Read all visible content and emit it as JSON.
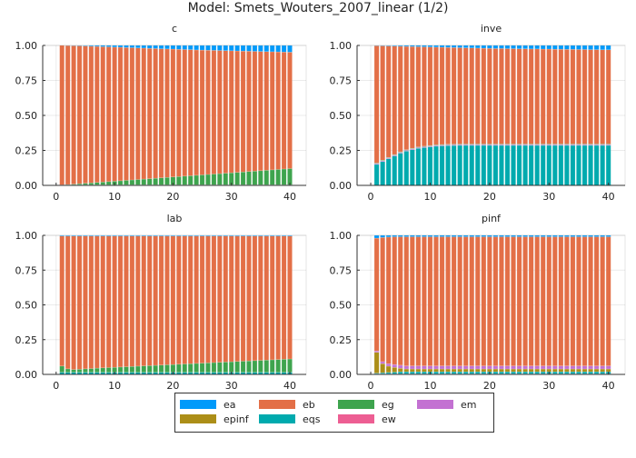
{
  "chart_data": {
    "title": "Model: Smets_Wouters_2007_linear  (1/2)",
    "type": "bar",
    "stacked": true,
    "x": [
      1,
      2,
      3,
      4,
      5,
      6,
      7,
      8,
      9,
      10,
      11,
      12,
      13,
      14,
      15,
      16,
      17,
      18,
      19,
      20,
      21,
      22,
      23,
      24,
      25,
      26,
      27,
      28,
      29,
      30,
      31,
      32,
      33,
      34,
      35,
      36,
      37,
      38,
      39,
      40
    ],
    "xlim": [
      -2.3,
      42.8
    ],
    "ylim": [
      0,
      1
    ],
    "xticks": [
      "0",
      "10",
      "20",
      "30",
      "40"
    ],
    "xtick_values": [
      0,
      10,
      20,
      30,
      40
    ],
    "yticks": [
      "0.00",
      "0.25",
      "0.50",
      "0.75",
      "1.00"
    ],
    "ytick_values": [
      0,
      0.25,
      0.5,
      0.75,
      1
    ],
    "grid": true,
    "legend": {
      "placement": "bottom",
      "entries": [
        "ea",
        "eb",
        "eg",
        "em",
        "epinf",
        "eqs",
        "ew"
      ]
    },
    "colors": {
      "ea": "#009AFA",
      "eb": "#E36F47",
      "eg": "#3EA44E",
      "em": "#C371D2",
      "epinf": "#AC8E18",
      "eqs": "#00AAAE",
      "ew": "#ED5E93"
    },
    "panels": [
      {
        "title": "c",
        "series": {
          "ea": [
            0.0,
            0.001,
            0.002,
            0.003,
            0.004,
            0.006,
            0.007,
            0.009,
            0.01,
            0.012,
            0.013,
            0.015,
            0.016,
            0.018,
            0.019,
            0.021,
            0.022,
            0.024,
            0.025,
            0.026,
            0.028,
            0.029,
            0.03,
            0.032,
            0.033,
            0.034,
            0.035,
            0.036,
            0.037,
            0.038,
            0.039,
            0.04,
            0.041,
            0.042,
            0.043,
            0.044,
            0.045,
            0.046,
            0.047,
            0.048
          ],
          "eb": [
            0.996,
            0.993,
            0.989,
            0.985,
            0.981,
            0.976,
            0.972,
            0.967,
            0.963,
            0.958,
            0.954,
            0.949,
            0.945,
            0.94,
            0.936,
            0.931,
            0.927,
            0.922,
            0.918,
            0.914,
            0.909,
            0.905,
            0.901,
            0.896,
            0.892,
            0.888,
            0.884,
            0.88,
            0.876,
            0.872,
            0.868,
            0.864,
            0.86,
            0.856,
            0.852,
            0.848,
            0.844,
            0.84,
            0.836,
            0.832
          ],
          "eg": [
            0.0,
            0.002,
            0.005,
            0.008,
            0.011,
            0.014,
            0.017,
            0.02,
            0.023,
            0.026,
            0.029,
            0.032,
            0.035,
            0.038,
            0.041,
            0.044,
            0.047,
            0.05,
            0.053,
            0.056,
            0.059,
            0.062,
            0.065,
            0.068,
            0.071,
            0.074,
            0.077,
            0.08,
            0.083,
            0.086,
            0.089,
            0.092,
            0.095,
            0.098,
            0.101,
            0.104,
            0.107,
            0.11,
            0.113,
            0.116
          ],
          "em": [
            0.004,
            0.004,
            0.004,
            0.004,
            0.004,
            0.004,
            0.004,
            0.004,
            0.004,
            0.004,
            0.004,
            0.004,
            0.004,
            0.004,
            0.004,
            0.004,
            0.004,
            0.004,
            0.004,
            0.004,
            0.004,
            0.004,
            0.004,
            0.004,
            0.004,
            0.004,
            0.004,
            0.004,
            0.004,
            0.004,
            0.004,
            0.004,
            0.004,
            0.004,
            0.004,
            0.004,
            0.004,
            0.004,
            0.004,
            0.004
          ]
        }
      },
      {
        "title": "inve",
        "series": {
          "ea": [
            0.002,
            0.003,
            0.004,
            0.005,
            0.006,
            0.007,
            0.008,
            0.009,
            0.01,
            0.011,
            0.012,
            0.013,
            0.014,
            0.015,
            0.016,
            0.017,
            0.018,
            0.019,
            0.02,
            0.021,
            0.022,
            0.022,
            0.023,
            0.023,
            0.024,
            0.024,
            0.025,
            0.025,
            0.026,
            0.026,
            0.027,
            0.027,
            0.028,
            0.028,
            0.029,
            0.029,
            0.03,
            0.03,
            0.031,
            0.031
          ],
          "eb": [
            0.838,
            0.817,
            0.796,
            0.775,
            0.754,
            0.738,
            0.727,
            0.716,
            0.71,
            0.704,
            0.698,
            0.695,
            0.692,
            0.69,
            0.688,
            0.687,
            0.686,
            0.685,
            0.684,
            0.683,
            0.682,
            0.682,
            0.681,
            0.681,
            0.68,
            0.68,
            0.679,
            0.679,
            0.678,
            0.678,
            0.677,
            0.677,
            0.676,
            0.676,
            0.675,
            0.675,
            0.674,
            0.674,
            0.673,
            0.673
          ],
          "eg": [
            0.004,
            0.004,
            0.004,
            0.004,
            0.004,
            0.004,
            0.004,
            0.004,
            0.004,
            0.004,
            0.004,
            0.004,
            0.004,
            0.004,
            0.004,
            0.004,
            0.004,
            0.004,
            0.004,
            0.004,
            0.004,
            0.004,
            0.004,
            0.004,
            0.004,
            0.004,
            0.004,
            0.004,
            0.004,
            0.004,
            0.004,
            0.004,
            0.004,
            0.004,
            0.004,
            0.004,
            0.004,
            0.004,
            0.004,
            0.004
          ],
          "em": [
            0.006,
            0.006,
            0.006,
            0.006,
            0.006,
            0.006,
            0.006,
            0.006,
            0.006,
            0.006,
            0.006,
            0.006,
            0.006,
            0.006,
            0.006,
            0.006,
            0.006,
            0.006,
            0.006,
            0.006,
            0.006,
            0.006,
            0.006,
            0.006,
            0.006,
            0.006,
            0.006,
            0.006,
            0.006,
            0.006,
            0.006,
            0.006,
            0.006,
            0.006,
            0.006,
            0.006,
            0.006,
            0.006,
            0.006,
            0.006
          ],
          "eqs": [
            0.15,
            0.17,
            0.19,
            0.21,
            0.23,
            0.245,
            0.255,
            0.265,
            0.27,
            0.275,
            0.28,
            0.282,
            0.284,
            0.285,
            0.286,
            0.286,
            0.286,
            0.286,
            0.286,
            0.286,
            0.286,
            0.286,
            0.286,
            0.286,
            0.286,
            0.286,
            0.286,
            0.286,
            0.286,
            0.286,
            0.286,
            0.286,
            0.286,
            0.286,
            0.286,
            0.286,
            0.286,
            0.286,
            0.286,
            0.286
          ]
        }
      },
      {
        "title": "lab",
        "series": {
          "ea": [
            0.005,
            0.005,
            0.005,
            0.005,
            0.005,
            0.005,
            0.005,
            0.005,
            0.005,
            0.005,
            0.005,
            0.005,
            0.005,
            0.005,
            0.005,
            0.005,
            0.005,
            0.005,
            0.005,
            0.005,
            0.005,
            0.005,
            0.005,
            0.005,
            0.005,
            0.005,
            0.005,
            0.005,
            0.005,
            0.005,
            0.005,
            0.005,
            0.005,
            0.005,
            0.005,
            0.005,
            0.005,
            0.005,
            0.005,
            0.005
          ],
          "eb": [
            0.935,
            0.955,
            0.96,
            0.958,
            0.955,
            0.953,
            0.95,
            0.948,
            0.946,
            0.944,
            0.942,
            0.94,
            0.938,
            0.936,
            0.934,
            0.932,
            0.93,
            0.928,
            0.926,
            0.924,
            0.922,
            0.92,
            0.918,
            0.916,
            0.914,
            0.912,
            0.91,
            0.908,
            0.906,
            0.904,
            0.902,
            0.9,
            0.898,
            0.896,
            0.894,
            0.892,
            0.89,
            0.888,
            0.886,
            0.884
          ],
          "eg": [
            0.045,
            0.025,
            0.02,
            0.022,
            0.025,
            0.027,
            0.03,
            0.032,
            0.034,
            0.036,
            0.038,
            0.04,
            0.042,
            0.044,
            0.046,
            0.048,
            0.05,
            0.052,
            0.054,
            0.056,
            0.058,
            0.06,
            0.062,
            0.064,
            0.066,
            0.068,
            0.07,
            0.072,
            0.074,
            0.076,
            0.078,
            0.08,
            0.082,
            0.084,
            0.086,
            0.088,
            0.09,
            0.092,
            0.094,
            0.096
          ],
          "eqs": [
            0.015,
            0.015,
            0.015,
            0.015,
            0.015,
            0.015,
            0.015,
            0.015,
            0.015,
            0.015,
            0.015,
            0.015,
            0.015,
            0.015,
            0.015,
            0.015,
            0.015,
            0.015,
            0.015,
            0.015,
            0.015,
            0.015,
            0.015,
            0.015,
            0.015,
            0.015,
            0.015,
            0.015,
            0.015,
            0.015,
            0.015,
            0.015,
            0.015,
            0.015,
            0.015,
            0.015,
            0.015,
            0.015,
            0.015,
            0.015
          ]
        }
      },
      {
        "title": "pinf",
        "series": {
          "ea": [
            0.02,
            0.015,
            0.012,
            0.01,
            0.01,
            0.01,
            0.01,
            0.01,
            0.01,
            0.01,
            0.01,
            0.01,
            0.01,
            0.01,
            0.01,
            0.01,
            0.01,
            0.01,
            0.01,
            0.01,
            0.01,
            0.01,
            0.01,
            0.01,
            0.01,
            0.01,
            0.01,
            0.01,
            0.01,
            0.01,
            0.01,
            0.01,
            0.01,
            0.01,
            0.01,
            0.01,
            0.01,
            0.01,
            0.01,
            0.01
          ],
          "eb": [
            0.811,
            0.893,
            0.911,
            0.919,
            0.924,
            0.929,
            0.929,
            0.929,
            0.929,
            0.929,
            0.929,
            0.929,
            0.929,
            0.929,
            0.929,
            0.929,
            0.929,
            0.929,
            0.929,
            0.929,
            0.929,
            0.929,
            0.929,
            0.929,
            0.929,
            0.929,
            0.929,
            0.929,
            0.929,
            0.929,
            0.929,
            0.929,
            0.929,
            0.929,
            0.929,
            0.929,
            0.929,
            0.929,
            0.929,
            0.929
          ],
          "em": [
            0.01,
            0.015,
            0.018,
            0.02,
            0.022,
            0.022,
            0.022,
            0.022,
            0.022,
            0.022,
            0.022,
            0.022,
            0.022,
            0.022,
            0.022,
            0.022,
            0.022,
            0.022,
            0.022,
            0.022,
            0.022,
            0.022,
            0.022,
            0.022,
            0.022,
            0.022,
            0.022,
            0.022,
            0.022,
            0.022,
            0.022,
            0.022,
            0.022,
            0.022,
            0.022,
            0.022,
            0.022,
            0.022,
            0.022,
            0.022
          ],
          "epinf": [
            0.15,
            0.065,
            0.045,
            0.035,
            0.025,
            0.02,
            0.02,
            0.02,
            0.02,
            0.02,
            0.02,
            0.02,
            0.02,
            0.02,
            0.02,
            0.02,
            0.02,
            0.02,
            0.02,
            0.02,
            0.02,
            0.02,
            0.02,
            0.02,
            0.02,
            0.02,
            0.02,
            0.02,
            0.02,
            0.02,
            0.02,
            0.02,
            0.02,
            0.02,
            0.02,
            0.02,
            0.02,
            0.02,
            0.02,
            0.02
          ],
          "eqs": [
            0.005,
            0.008,
            0.01,
            0.012,
            0.015,
            0.015,
            0.015,
            0.015,
            0.015,
            0.015,
            0.015,
            0.015,
            0.015,
            0.015,
            0.015,
            0.015,
            0.015,
            0.015,
            0.015,
            0.015,
            0.015,
            0.015,
            0.015,
            0.015,
            0.015,
            0.015,
            0.015,
            0.015,
            0.015,
            0.015,
            0.015,
            0.015,
            0.015,
            0.015,
            0.015,
            0.015,
            0.015,
            0.015,
            0.015,
            0.015
          ],
          "ew": [
            0.004,
            0.004,
            0.004,
            0.004,
            0.004,
            0.004,
            0.004,
            0.004,
            0.004,
            0.004,
            0.004,
            0.004,
            0.004,
            0.004,
            0.004,
            0.004,
            0.004,
            0.004,
            0.004,
            0.004,
            0.004,
            0.004,
            0.004,
            0.004,
            0.004,
            0.004,
            0.004,
            0.004,
            0.004,
            0.004,
            0.004,
            0.004,
            0.004,
            0.004,
            0.004,
            0.004,
            0.004,
            0.004,
            0.004,
            0.004
          ]
        }
      }
    ]
  }
}
